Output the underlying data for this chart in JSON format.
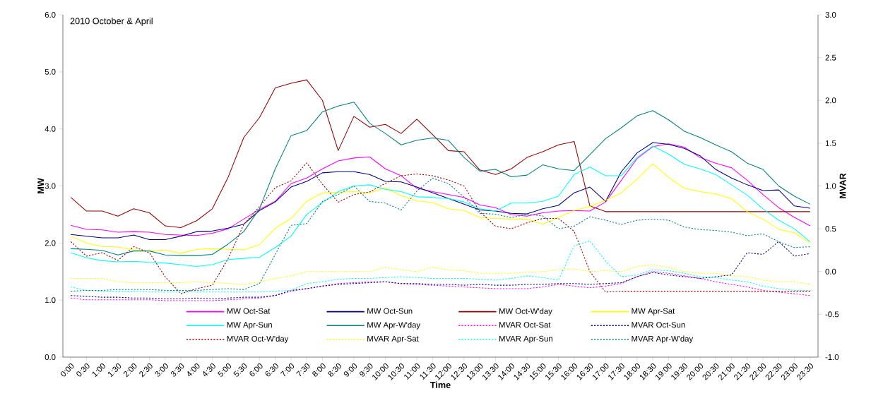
{
  "chart_data": {
    "type": "line",
    "title": "2010 October & April",
    "xlabel": "Time",
    "ylabel": "MW",
    "y2label": "MVAR",
    "x": [
      0,
      0.5,
      1,
      1.5,
      2,
      2.5,
      3,
      3.5,
      4,
      4.5,
      5,
      5.5,
      6,
      6.5,
      7,
      7.5,
      8,
      8.5,
      9,
      9.5,
      10,
      10.5,
      11,
      11.5,
      12,
      12.5,
      13,
      13.5,
      14,
      14.5,
      15,
      15.5,
      16,
      16.5,
      17,
      17.5,
      18,
      18.5,
      19,
      19.5,
      20,
      20.5,
      21,
      21.5,
      22,
      22.5,
      23,
      23.5
    ],
    "xlim": [
      -0.25,
      23.75
    ],
    "xticks": [
      {
        "value": 0,
        "label": "0:00"
      },
      {
        "value": 0.5,
        "label": "0:30"
      },
      {
        "value": 1,
        "label": "1:00"
      },
      {
        "value": 1.5,
        "label": "1:30"
      },
      {
        "value": 2,
        "label": "2:00"
      },
      {
        "value": 2.5,
        "label": "2:30"
      },
      {
        "value": 3,
        "label": "3:00"
      },
      {
        "value": 3.5,
        "label": "3:30"
      },
      {
        "value": 4,
        "label": "4:00"
      },
      {
        "value": 4.5,
        "label": "4:30"
      },
      {
        "value": 5,
        "label": "5:00"
      },
      {
        "value": 5.5,
        "label": "5:30"
      },
      {
        "value": 6,
        "label": "6:00"
      },
      {
        "value": 6.5,
        "label": "6:30"
      },
      {
        "value": 7,
        "label": "7:00"
      },
      {
        "value": 7.5,
        "label": "7:30"
      },
      {
        "value": 8,
        "label": "8:00"
      },
      {
        "value": 8.5,
        "label": "8:30"
      },
      {
        "value": 9,
        "label": "9:00"
      },
      {
        "value": 9.5,
        "label": "9:30"
      },
      {
        "value": 10,
        "label": "10:00"
      },
      {
        "value": 10.5,
        "label": "10:30"
      },
      {
        "value": 11,
        "label": "11:00"
      },
      {
        "value": 11.5,
        "label": "11:30"
      },
      {
        "value": 12,
        "label": "12:00"
      },
      {
        "value": 12.5,
        "label": "12:30"
      },
      {
        "value": 13,
        "label": "13:00"
      },
      {
        "value": 13.5,
        "label": "13:30"
      },
      {
        "value": 14,
        "label": "14:00"
      },
      {
        "value": 14.5,
        "label": "14:30"
      },
      {
        "value": 15,
        "label": "15:00"
      },
      {
        "value": 15.5,
        "label": "15:30"
      },
      {
        "value": 16,
        "label": "16:00"
      },
      {
        "value": 16.5,
        "label": "16:30"
      },
      {
        "value": 17,
        "label": "17:00"
      },
      {
        "value": 17.5,
        "label": "17:30"
      },
      {
        "value": 18,
        "label": "18:00"
      },
      {
        "value": 18.5,
        "label": "18:30"
      },
      {
        "value": 19,
        "label": "19:00"
      },
      {
        "value": 19.5,
        "label": "19:30"
      },
      {
        "value": 20,
        "label": "20:00"
      },
      {
        "value": 20.5,
        "label": "20:30"
      },
      {
        "value": 21,
        "label": "21:00"
      },
      {
        "value": 21.5,
        "label": "21:30"
      },
      {
        "value": 22,
        "label": "22:00"
      },
      {
        "value": 22.5,
        "label": "22:30"
      },
      {
        "value": 23,
        "label": "23:00"
      },
      {
        "value": 23.5,
        "label": "23:30"
      }
    ],
    "ylim": [
      0,
      6
    ],
    "yticks": [
      {
        "value": 0,
        "label": "0.0"
      },
      {
        "value": 1,
        "label": "1.0"
      },
      {
        "value": 2,
        "label": "2.0"
      },
      {
        "value": 3,
        "label": "3.0"
      },
      {
        "value": 4,
        "label": "4.0"
      },
      {
        "value": 5,
        "label": "5.0"
      },
      {
        "value": 6,
        "label": "6.0"
      }
    ],
    "y2lim": [
      -1,
      3
    ],
    "y2ticks": [
      {
        "value": -1,
        "label": "-1.0"
      },
      {
        "value": -0.5,
        "label": "-0.5"
      },
      {
        "value": 0,
        "label": "0.0"
      },
      {
        "value": 0.5,
        "label": "0.5"
      },
      {
        "value": 1,
        "label": "1.0"
      },
      {
        "value": 1.5,
        "label": "1.5"
      },
      {
        "value": 2,
        "label": "2.0"
      },
      {
        "value": 2.5,
        "label": "2.5"
      },
      {
        "value": 3,
        "label": "3.0"
      }
    ],
    "legend": "bottom",
    "marker": "none",
    "series": [
      {
        "name": "MW  Oct-Sat",
        "color": "#ff00ff",
        "line_style": "solid",
        "axis": "y",
        "values": [
          2.31,
          2.24,
          2.23,
          2.19,
          2.2,
          2.19,
          2.15,
          2.14,
          2.13,
          2.17,
          2.25,
          2.42,
          2.59,
          2.73,
          3.04,
          3.14,
          3.3,
          3.44,
          3.49,
          3.51,
          3.3,
          3.18,
          2.96,
          2.9,
          2.85,
          2.8,
          2.67,
          2.62,
          2.5,
          2.47,
          2.53,
          2.56,
          2.57,
          2.56,
          2.72,
          3.1,
          3.48,
          3.69,
          3.74,
          3.68,
          3.5,
          3.4,
          3.32,
          3.1,
          2.85,
          2.62,
          2.45,
          2.3
        ]
      },
      {
        "name": "MW  Oct-Sun",
        "color": "#000080",
        "line_style": "solid",
        "axis": "y",
        "values": [
          2.15,
          2.12,
          2.09,
          2.09,
          2.14,
          2.06,
          2.06,
          2.12,
          2.2,
          2.21,
          2.26,
          2.33,
          2.57,
          2.72,
          2.98,
          3.08,
          3.23,
          3.25,
          3.25,
          3.2,
          3.08,
          3.07,
          2.98,
          2.88,
          2.78,
          2.68,
          2.58,
          2.56,
          2.52,
          2.51,
          2.6,
          2.66,
          2.88,
          2.98,
          2.73,
          3.25,
          3.58,
          3.76,
          3.73,
          3.66,
          3.53,
          3.29,
          3.14,
          3.02,
          2.92,
          2.93,
          2.65,
          2.61
        ]
      },
      {
        "name": "MW  Oct-W'day",
        "color": "#990000",
        "line_style": "solid",
        "axis": "y",
        "values": [
          2.8,
          2.56,
          2.56,
          2.47,
          2.6,
          2.53,
          2.3,
          2.27,
          2.39,
          2.6,
          3.15,
          3.85,
          4.2,
          4.72,
          4.8,
          4.86,
          4.5,
          3.62,
          4.22,
          4.03,
          4.08,
          3.92,
          4.17,
          3.9,
          3.62,
          3.6,
          3.28,
          3.2,
          3.3,
          3.5,
          3.6,
          3.72,
          3.78,
          2.65,
          2.55,
          2.55,
          2.55,
          2.55,
          2.55,
          2.55,
          2.55,
          2.55,
          2.55,
          2.55,
          2.55,
          2.55,
          2.55,
          2.55
        ]
      },
      {
        "name": "MW  Apr-Sat",
        "color": "#ffff00",
        "line_style": "solid",
        "axis": "y",
        "values": [
          2.12,
          2.0,
          1.94,
          1.93,
          1.88,
          1.86,
          1.88,
          1.82,
          1.89,
          1.9,
          1.89,
          1.88,
          1.97,
          2.26,
          2.43,
          2.73,
          2.88,
          2.89,
          2.9,
          2.88,
          2.97,
          2.83,
          2.74,
          2.71,
          2.6,
          2.57,
          2.45,
          2.43,
          2.42,
          2.42,
          2.33,
          2.45,
          2.57,
          2.64,
          2.75,
          2.88,
          3.12,
          3.39,
          3.15,
          2.96,
          2.9,
          2.86,
          2.78,
          2.55,
          2.42,
          2.24,
          2.18,
          2.0
        ]
      },
      {
        "name": "MW  Apr-Sun",
        "color": "#00ffff",
        "line_style": "solid",
        "axis": "y",
        "values": [
          1.83,
          1.74,
          1.69,
          1.67,
          1.68,
          1.66,
          1.65,
          1.62,
          1.59,
          1.62,
          1.71,
          1.73,
          1.75,
          1.92,
          2.12,
          2.5,
          2.71,
          2.9,
          3.0,
          3.02,
          2.94,
          2.9,
          2.81,
          2.8,
          2.78,
          2.72,
          2.6,
          2.56,
          2.7,
          2.7,
          2.73,
          2.82,
          3.2,
          3.33,
          3.18,
          3.18,
          3.5,
          3.7,
          3.56,
          3.38,
          3.3,
          3.2,
          3.02,
          2.84,
          2.6,
          2.4,
          2.25,
          2.02
        ]
      },
      {
        "name": "MW  Apr-W'day",
        "color": "#008080",
        "line_style": "solid",
        "axis": "y",
        "values": [
          1.9,
          1.89,
          1.87,
          1.79,
          1.86,
          1.86,
          1.79,
          1.78,
          1.78,
          1.8,
          1.98,
          2.2,
          2.6,
          3.3,
          3.88,
          3.97,
          4.3,
          4.4,
          4.47,
          4.1,
          3.92,
          3.72,
          3.8,
          3.84,
          3.8,
          3.5,
          3.26,
          3.29,
          3.16,
          3.19,
          3.37,
          3.3,
          3.27,
          3.55,
          3.83,
          4.02,
          4.23,
          4.32,
          4.16,
          3.96,
          3.85,
          3.72,
          3.6,
          3.4,
          3.29,
          3.0,
          2.82,
          2.68
        ]
      },
      {
        "name": "MVAR  Oct-Sat",
        "color": "#ff00ff",
        "line_style": "dotted",
        "axis": "y2",
        "values": [
          -0.31,
          -0.33,
          -0.33,
          -0.33,
          -0.33,
          -0.33,
          -0.34,
          -0.34,
          -0.34,
          -0.34,
          -0.33,
          -0.32,
          -0.31,
          -0.28,
          -0.23,
          -0.2,
          -0.17,
          -0.14,
          -0.13,
          -0.12,
          -0.12,
          -0.14,
          -0.15,
          -0.16,
          -0.17,
          -0.18,
          -0.19,
          -0.2,
          -0.2,
          -0.2,
          -0.18,
          -0.15,
          -0.17,
          -0.19,
          -0.17,
          -0.14,
          -0.06,
          0.0,
          -0.02,
          -0.05,
          -0.08,
          -0.12,
          -0.15,
          -0.18,
          -0.22,
          -0.24,
          -0.26,
          -0.28
        ]
      },
      {
        "name": "MVAR  Oct-Sun",
        "color": "#000080",
        "line_style": "dotted",
        "axis": "y2",
        "values": [
          -0.28,
          -0.29,
          -0.3,
          -0.3,
          -0.31,
          -0.31,
          -0.32,
          -0.32,
          -0.31,
          -0.32,
          -0.31,
          -0.3,
          -0.3,
          -0.28,
          -0.22,
          -0.2,
          -0.17,
          -0.15,
          -0.14,
          -0.13,
          -0.12,
          -0.14,
          -0.14,
          -0.15,
          -0.15,
          -0.16,
          -0.15,
          -0.16,
          -0.16,
          -0.15,
          -0.15,
          -0.14,
          -0.14,
          -0.15,
          -0.14,
          -0.13,
          -0.06,
          -0.01,
          -0.04,
          -0.06,
          -0.08,
          -0.06,
          -0.04,
          0.22,
          0.2,
          0.35,
          0.18,
          0.21
        ]
      },
      {
        "name": "MVAR  Oct-W'day",
        "color": "#990000",
        "line_style": "dotted",
        "axis": "y2",
        "values": [
          0.35,
          0.18,
          0.22,
          0.13,
          0.29,
          0.22,
          -0.06,
          -0.26,
          -0.2,
          -0.16,
          0.15,
          0.55,
          0.76,
          0.98,
          1.06,
          1.27,
          1.02,
          0.81,
          0.9,
          0.93,
          1.03,
          1.12,
          1.14,
          1.12,
          1.07,
          1.0,
          0.7,
          0.53,
          0.5,
          0.57,
          0.62,
          0.62,
          0.47,
          0.0,
          -0.24,
          -0.23,
          -0.23,
          -0.23,
          -0.23,
          -0.23,
          -0.23,
          -0.23,
          -0.23,
          -0.23,
          -0.23,
          -0.23,
          -0.23,
          -0.23
        ]
      },
      {
        "name": "MVAR  Apr-Sat",
        "color": "#ffff00",
        "line_style": "dotted",
        "axis": "y2",
        "values": [
          -0.08,
          -0.08,
          -0.08,
          -0.12,
          -0.13,
          -0.13,
          -0.13,
          -0.13,
          -0.12,
          -0.13,
          -0.14,
          -0.15,
          -0.12,
          -0.08,
          -0.05,
          0.0,
          0.0,
          0.0,
          0.0,
          0.0,
          0.05,
          0.02,
          0.0,
          0.05,
          0.02,
          0.01,
          -0.02,
          -0.02,
          -0.02,
          -0.01,
          0.0,
          0.02,
          0.03,
          0.0,
          0.01,
          0.0,
          0.06,
          0.08,
          0.05,
          0.0,
          -0.02,
          -0.02,
          -0.05,
          -0.06,
          -0.1,
          -0.12,
          -0.12,
          -0.15
        ]
      },
      {
        "name": "MVAR  Apr-Sun",
        "color": "#00ffff",
        "line_style": "dotted",
        "axis": "y2",
        "values": [
          -0.18,
          -0.22,
          -0.23,
          -0.23,
          -0.23,
          -0.24,
          -0.24,
          -0.24,
          -0.24,
          -0.24,
          -0.24,
          -0.24,
          -0.24,
          -0.23,
          -0.22,
          -0.14,
          -0.12,
          -0.09,
          -0.08,
          -0.08,
          -0.07,
          -0.06,
          -0.07,
          -0.08,
          -0.08,
          -0.08,
          -0.09,
          -0.1,
          -0.08,
          -0.05,
          -0.07,
          -0.1,
          0.3,
          0.36,
          0.12,
          -0.06,
          -0.04,
          0.02,
          0.01,
          -0.02,
          -0.06,
          -0.07,
          -0.1,
          -0.12,
          -0.17,
          -0.2,
          -0.22,
          -0.22
        ]
      },
      {
        "name": "MVAR  Apr-W'day",
        "color": "#008080",
        "line_style": "dotted",
        "axis": "y2",
        "values": [
          -0.23,
          -0.22,
          -0.22,
          -0.21,
          -0.21,
          -0.21,
          -0.22,
          -0.22,
          -0.22,
          -0.21,
          -0.2,
          -0.21,
          -0.14,
          0.2,
          0.54,
          0.56,
          0.82,
          0.9,
          1.0,
          0.82,
          0.8,
          0.72,
          0.94,
          1.09,
          1.03,
          0.87,
          0.68,
          0.67,
          0.63,
          0.67,
          0.65,
          0.5,
          0.53,
          0.64,
          0.6,
          0.55,
          0.6,
          0.61,
          0.6,
          0.52,
          0.49,
          0.48,
          0.46,
          0.42,
          0.44,
          0.35,
          0.28,
          0.29
        ]
      }
    ]
  }
}
